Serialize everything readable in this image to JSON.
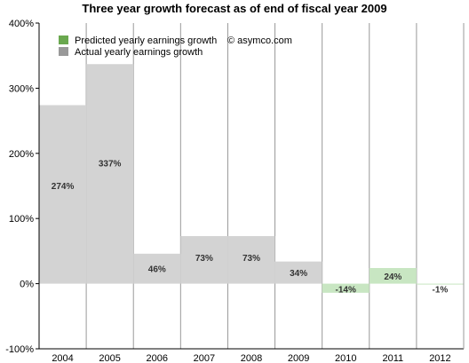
{
  "chart_data": {
    "type": "bar",
    "title": "Three year growth forecast as of end of fiscal year 2009",
    "categories": [
      "2004",
      "2005",
      "2006",
      "2007",
      "2008",
      "2009",
      "2010",
      "2011",
      "2012"
    ],
    "series": [
      {
        "name": "Actual yearly earnings growth",
        "color": "#d3d3d3",
        "values": [
          274,
          337,
          46,
          73,
          73,
          34,
          null,
          null,
          null
        ]
      },
      {
        "name": "Predicted yearly earnings growth",
        "color": "#c8e6c2",
        "values": [
          null,
          null,
          null,
          null,
          null,
          null,
          -14,
          24,
          -1
        ]
      }
    ],
    "data_labels": [
      "274%",
      "337%",
      "46%",
      "73%",
      "73%",
      "34%",
      "-14%",
      "24%",
      "-1%"
    ],
    "ylim": [
      -100,
      400
    ],
    "yticks": [
      -100,
      0,
      100,
      200,
      300,
      400
    ],
    "ytick_labels": [
      "-100%",
      "0%",
      "100%",
      "200%",
      "300%",
      "400%"
    ],
    "grid": "vertical",
    "legend": {
      "placement": "top-left",
      "entries": [
        {
          "label": "Predicted yearly earnings growth",
          "swatch_color": "#6aa84f"
        },
        {
          "label": "Actual yearly earnings growth",
          "swatch_color": "#999999"
        }
      ]
    },
    "annotation": "© asymco.com"
  }
}
